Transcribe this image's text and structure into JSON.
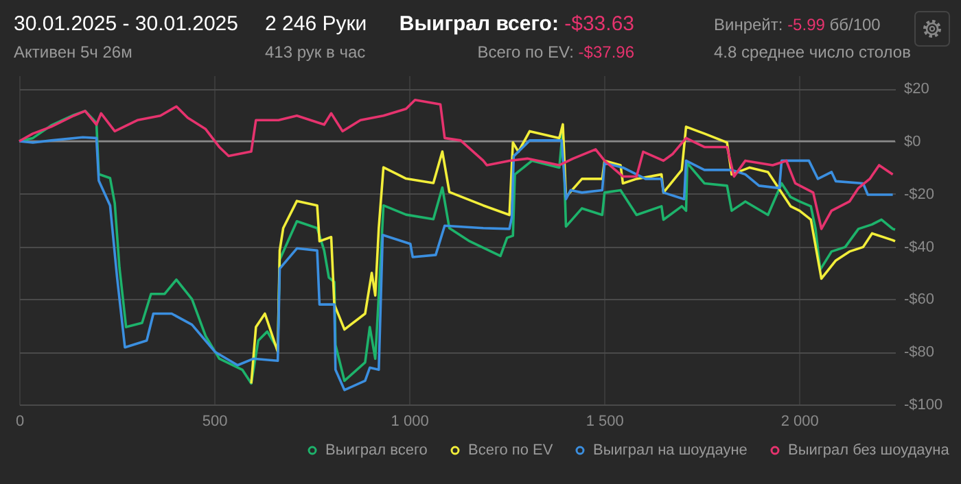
{
  "chart_data": {
    "type": "line",
    "title": "30.01.2025 - 30.01.2025",
    "subtitle": "Активен 5ч 26м",
    "annotations": [
      "2 246 Руки",
      "413 рук в час",
      "Выиграл всего: -$33.63",
      "Всего по EV: -$37.96",
      "Винрейт: -5.99 бб/100",
      "4.8 среднее число столов"
    ],
    "xlim": [
      0,
      2246
    ],
    "xticks": [
      0,
      500,
      {
        "value": 1000,
        "label": "1 000"
      },
      {
        "value": 1500,
        "label": "1 500"
      },
      {
        "value": 2000,
        "label": "2 000"
      }
    ],
    "ylim": [
      -100,
      25
    ],
    "yticks": [
      {
        "value": -100,
        "label": "-$100"
      },
      {
        "value": -80,
        "label": "-$80"
      },
      {
        "value": -60,
        "label": "-$60"
      },
      {
        "value": -40,
        "label": "-$40"
      },
      {
        "value": -20,
        "label": "-$20"
      },
      {
        "value": 0,
        "label": "$0"
      },
      {
        "value": 20,
        "label": "$20"
      }
    ],
    "grid": true,
    "legend": "bottom right",
    "marker": "none",
    "line_style": "solid",
    "ref_lines": [
      {
        "axis": "y",
        "value": 0,
        "color": "#8a8a8a"
      }
    ],
    "series": [
      {
        "name": "Выиграл всего",
        "color": "#1db36b",
        "x": [
          0,
          35,
          82,
          140,
          169,
          198,
          204,
          233,
          245,
          257,
          274,
          315,
          338,
          373,
          403,
          443,
          478,
          513,
          572,
          595,
          613,
          636,
          663,
          668,
          712,
          764,
          782,
          794,
          808,
          811,
          834,
          887,
          899,
          913,
          922,
          934,
          992,
          1062,
          1085,
          1103,
          1155,
          1234,
          1251,
          1266,
          1271,
          1315,
          1385,
          1394,
          1402,
          1443,
          1495,
          1501,
          1542,
          1583,
          1647,
          1652,
          1699,
          1710,
          1713,
          1757,
          1815,
          1827,
          1862,
          1920,
          1955,
          1978,
          2001,
          2030,
          2042,
          2054,
          2083,
          2118,
          2152,
          2187,
          2211,
          2240,
          2246
        ],
        "values": [
          0,
          1.2,
          6,
          10,
          11.5,
          7,
          -12.5,
          -14,
          -23.6,
          -48,
          -70.6,
          -69,
          -58,
          -58,
          -52.6,
          -60,
          -74,
          -82.6,
          -86.8,
          -92,
          -75.7,
          -72.3,
          -79,
          -45,
          -30.4,
          -33,
          -41.5,
          -51.8,
          -53.5,
          -77.4,
          -91,
          -84,
          -70.6,
          -82.6,
          -58.6,
          -24.4,
          -27.9,
          -29.6,
          -17.6,
          -33,
          -38,
          -43.6,
          -36.7,
          -35.9,
          -12.6,
          -7.4,
          -10,
          4.7,
          -32.4,
          -25.5,
          -28,
          -19.5,
          -18.6,
          -28,
          -24.7,
          -29.8,
          -24.7,
          -26.4,
          -8.3,
          -16,
          -16.9,
          -26.4,
          -22.9,
          -28,
          -16,
          -21.2,
          -22.9,
          -24.7,
          -33.3,
          -48.8,
          -41.9,
          -40.2,
          -33.3,
          -31.6,
          -29.8,
          -33.3,
          -33.6
        ]
      },
      {
        "name": "Всего по EV",
        "color": "#f2ee3a",
        "x": [
          595,
          607,
          630,
          663,
          668,
          677,
          712,
          764,
          770,
          800,
          808,
          834,
          887,
          904,
          913,
          922,
          934,
          992,
          1062,
          1085,
          1103,
          1190,
          1257,
          1266,
          1280,
          1309,
          1385,
          1394,
          1402,
          1443,
          1495,
          1501,
          1542,
          1548,
          1583,
          1647,
          1652,
          1699,
          1710,
          1757,
          1815,
          1827,
          1873,
          1920,
          1955,
          1978,
          2001,
          2030,
          2057,
          2094,
          2129,
          2164,
          2187,
          2240,
          2246
        ],
        "values": [
          -92,
          -70.6,
          -65.5,
          -80,
          -41.5,
          -33,
          -22.7,
          -24.4,
          -38,
          -36.4,
          -62,
          -71.5,
          -65.5,
          -50,
          -58.6,
          -33,
          -9.9,
          -14.2,
          -15.9,
          -3.9,
          -19.3,
          -24.4,
          -28,
          -0.5,
          -4,
          3.8,
          1.2,
          6.4,
          -21.2,
          -14.3,
          -14.3,
          -7.4,
          -9.1,
          -16,
          -14.3,
          -12.6,
          -19.5,
          -10.9,
          5.5,
          2.9,
          -0.5,
          -12.6,
          -10,
          -11.7,
          -19.5,
          -24.7,
          -26.4,
          -29.8,
          -52.2,
          -45.3,
          -41.9,
          -40.2,
          -35,
          -37.6,
          -38
        ]
      },
      {
        "name": "Выиграл на шоудауне",
        "color": "#3b8fe0",
        "x": [
          0,
          35,
          82,
          163,
          198,
          204,
          233,
          251,
          271,
          327,
          344,
          391,
          443,
          502,
          560,
          601,
          663,
          668,
          712,
          764,
          770,
          808,
          811,
          834,
          887,
          899,
          922,
          932,
          1003,
          1009,
          1068,
          1091,
          1190,
          1257,
          1263,
          1268,
          1309,
          1391,
          1402,
          1414,
          1443,
          1495,
          1501,
          1548,
          1606,
          1647,
          1652,
          1705,
          1710,
          1757,
          1827,
          1862,
          1897,
          1949,
          1955,
          2025,
          2048,
          2083,
          2094,
          2164,
          2176,
          2240
        ],
        "values": [
          0,
          -0.5,
          0.3,
          1.5,
          1.2,
          -15,
          -24.4,
          -51.8,
          -78.3,
          -75.7,
          -65.5,
          -65.5,
          -69.7,
          -80,
          -85.1,
          -82.6,
          -83.4,
          -48.4,
          -40.7,
          -41.5,
          -62,
          -62,
          -86.8,
          -94.5,
          -91,
          -86,
          -86.8,
          -35.6,
          -39,
          -44,
          -43.2,
          -32.1,
          -33,
          -33.3,
          -29,
          -5.7,
          0.3,
          0.3,
          -22,
          -18.6,
          -19.5,
          -18.6,
          -8.3,
          -10,
          -14.3,
          -14.3,
          -19.5,
          -22,
          -7.4,
          -10.9,
          -10.9,
          -12.6,
          -16.9,
          -17.8,
          -7.4,
          -7.4,
          -14.3,
          -11.7,
          -15.2,
          -16,
          -20.3,
          -20.3
        ]
      },
      {
        "name": "Выиграл без шоудауна",
        "color": "#e6336e",
        "x": [
          0,
          35,
          82,
          140,
          169,
          198,
          210,
          245,
          303,
          362,
          403,
          432,
          478,
          513,
          537,
          595,
          607,
          665,
          712,
          782,
          800,
          829,
          875,
          934,
          992,
          1015,
          1080,
          1091,
          1132,
          1190,
          1199,
          1257,
          1303,
          1385,
          1420,
          1478,
          1501,
          1548,
          1583,
          1600,
          1652,
          1676,
          1710,
          1757,
          1815,
          1833,
          1862,
          1932,
          1967,
          1990,
          2036,
          2057,
          2083,
          2129,
          2152,
          2181,
          2205,
          2240
        ],
        "values": [
          0,
          2.9,
          5.5,
          9.7,
          11.5,
          6.3,
          10.6,
          3.8,
          8,
          9.7,
          13.2,
          8.9,
          4.6,
          -2.2,
          -5.6,
          -3.9,
          8,
          8,
          9.7,
          6.3,
          10.6,
          3.8,
          8,
          9.7,
          12.3,
          15.7,
          14,
          1.2,
          0.3,
          -7.4,
          -9.1,
          -7.4,
          -6.6,
          -9.1,
          -6.6,
          -3.1,
          -7.4,
          -13.4,
          -13.4,
          -4,
          -7.4,
          -4.8,
          1.2,
          -2.2,
          -2.2,
          -13.4,
          -7.4,
          -9.1,
          -7.4,
          -16,
          -19.5,
          -33.3,
          -26.4,
          -22.9,
          -17.8,
          -14.3,
          -9.1,
          -12.6
        ]
      }
    ]
  }
}
